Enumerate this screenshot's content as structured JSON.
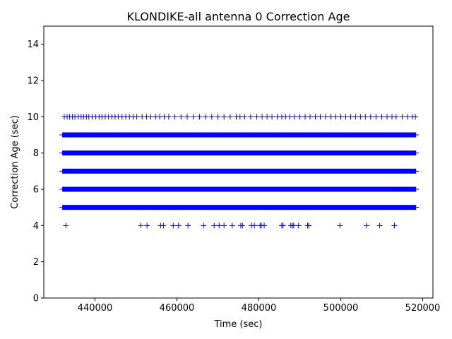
{
  "chart_data": {
    "type": "scatter",
    "title": "KLONDIKE-all antenna 0 Correction Age",
    "xlabel": "Time (sec)",
    "ylabel": "Correction Age (sec)",
    "xlim": [
      427500,
      522500
    ],
    "ylim": [
      0,
      15
    ],
    "x_ticks": [
      440000,
      460000,
      480000,
      500000,
      520000
    ],
    "x_tick_labels": [
      "440000",
      "460000",
      "480000",
      "500000",
      "520000"
    ],
    "y_ticks": [
      0,
      2,
      4,
      6,
      8,
      10,
      12,
      14
    ],
    "y_tick_labels": [
      "0",
      "2",
      "4",
      "6",
      "8",
      "10",
      "12",
      "14"
    ],
    "grid": false,
    "legend": "none",
    "marker": "+",
    "color": "#0000ff",
    "series": [
      {
        "dense_bands": [
          {
            "y": 5,
            "x_range": [
              432000,
              518400
            ]
          },
          {
            "y": 6,
            "x_range": [
              432000,
              518400
            ]
          },
          {
            "y": 7,
            "x_range": [
              432000,
              518400
            ]
          },
          {
            "y": 8,
            "x_range": [
              432000,
              518400
            ]
          },
          {
            "y": 9,
            "x_range": [
              432000,
              518400
            ]
          }
        ],
        "points": [
          {
            "y": 10,
            "x": [
              432500,
              433200,
              433800,
              434500,
              435100,
              435900,
              436600,
              437200,
              437900,
              438500,
              439300,
              440200,
              441000,
              441700,
              442500,
              443300,
              444100,
              444900,
              445700,
              446600,
              447500,
              448400,
              449300,
              450200,
              451500,
              452600,
              453600,
              454800,
              455800,
              456900,
              458000,
              459500,
              461000,
              462500,
              464000,
              465500,
              467000,
              468500,
              470000,
              471500,
              473000,
              474500,
              475400,
              476500,
              478000,
              479500,
              480800,
              482000,
              483200,
              484500,
              485600,
              486500,
              487500,
              488700,
              490000,
              491300,
              492500,
              493800,
              495000,
              496300,
              497600,
              498800,
              500000,
              501200,
              502400,
              503600,
              504800,
              506000,
              507300,
              508600,
              510000,
              511300,
              512500,
              513500,
              515000,
              516300,
              517500,
              518200
            ]
          },
          {
            "y": 4,
            "x": [
              432900,
              451200,
              452700,
              456000,
              456700,
              459100,
              460400,
              462700,
              466500,
              469100,
              470300,
              471500,
              473500,
              475600,
              476000,
              478200,
              478900,
              480300,
              480600,
              481300,
              485600,
              485900,
              487800,
              488200,
              488500,
              489700,
              491900,
              492200,
              499800,
              506300,
              509500,
              513100
            ]
          }
        ]
      }
    ]
  }
}
